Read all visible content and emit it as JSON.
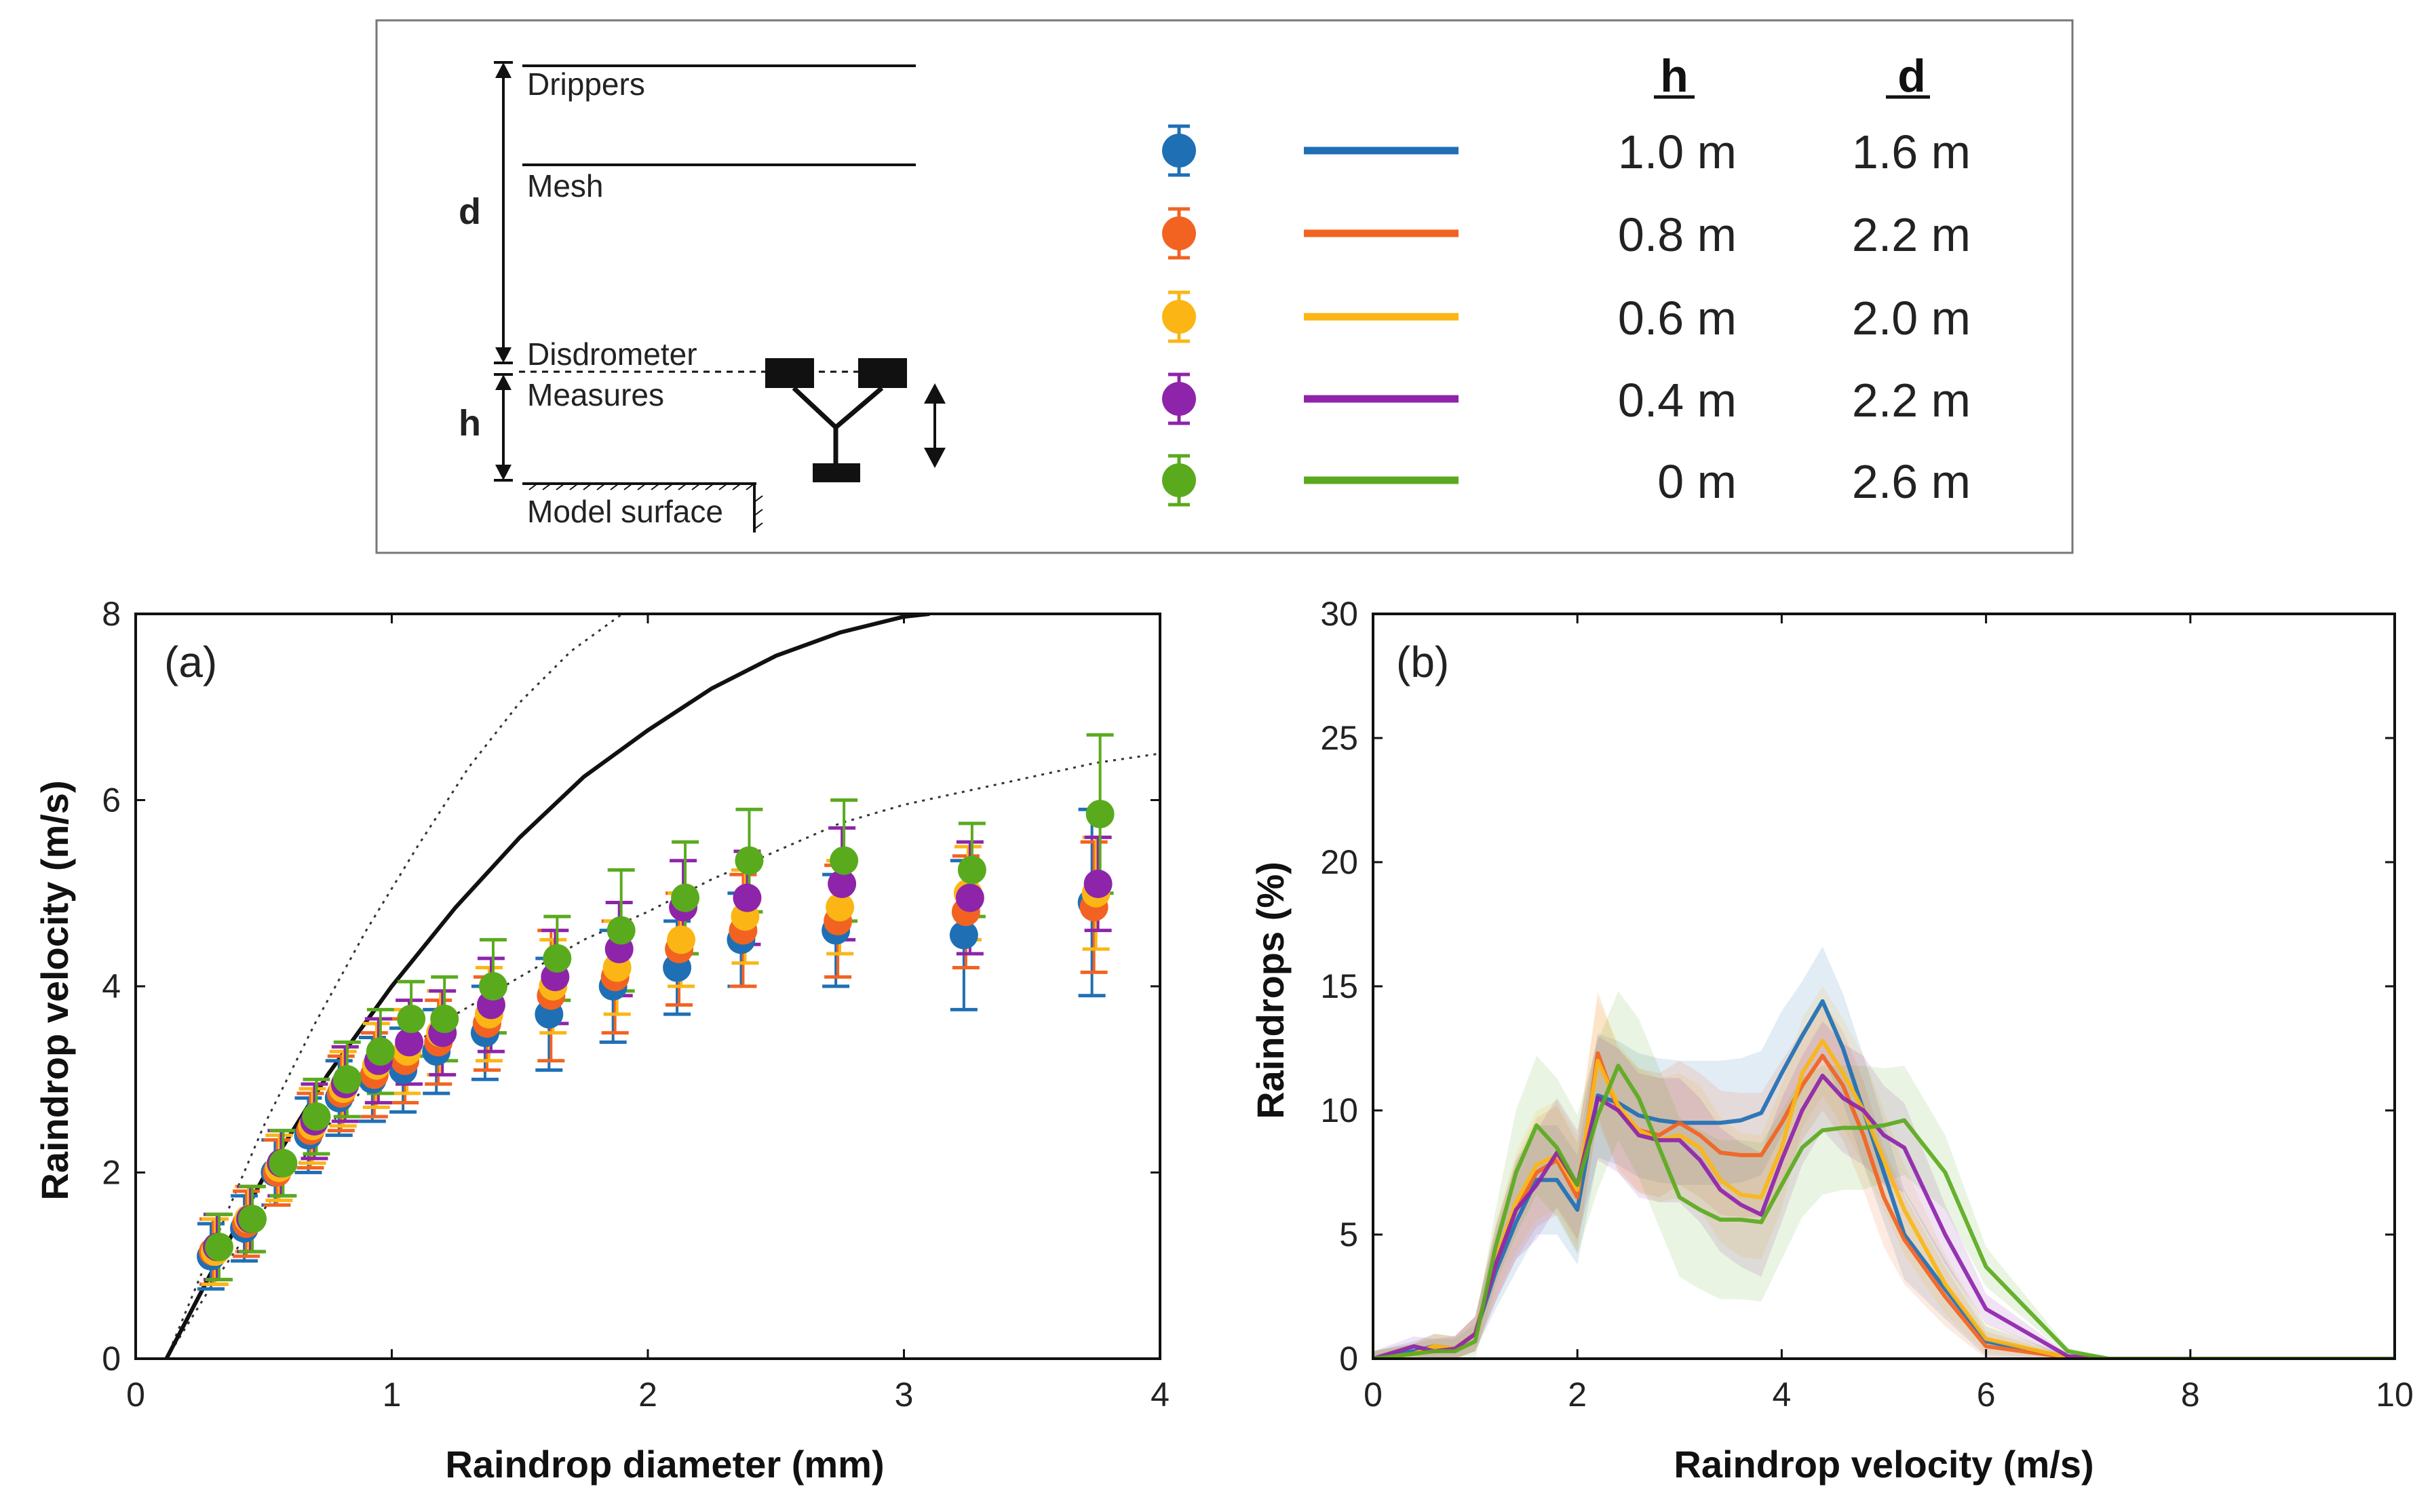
{
  "legend": {
    "diagram_labels": {
      "drippers": "Drippers",
      "mesh": "Mesh",
      "disdrometer": "Disdrometer",
      "measures": "Measures",
      "model_surface": "Model surface",
      "d": "d",
      "h": "h"
    },
    "col_h": "h",
    "col_d": "d",
    "rows": [
      {
        "h": "1.0 m",
        "d": "1.6 m",
        "color": "#1f6fb5"
      },
      {
        "h": "0.8 m",
        "d": "2.2 m",
        "color": "#f26322"
      },
      {
        "h": "0.6 m",
        "d": "2.0 m",
        "color": "#fbb615"
      },
      {
        "h": "0.4 m",
        "d": "2.2 m",
        "color": "#8e24aa"
      },
      {
        "h": "0 m",
        "d": "2.6 m",
        "color": "#5aaa1e"
      }
    ]
  },
  "chart_data": [
    {
      "type": "scatter",
      "panel": "(a)",
      "xlabel": "Raindrop diameter (mm)",
      "ylabel": "Raindrop velocity (m/s)",
      "xlim": [
        0,
        4
      ],
      "ylim": [
        0,
        8
      ],
      "xticks": [
        "0",
        "1",
        "2",
        "3",
        "4"
      ],
      "yticks": [
        "0",
        "2",
        "4",
        "6",
        "8"
      ],
      "x": [
        0.31,
        0.44,
        0.56,
        0.69,
        0.81,
        0.94,
        1.06,
        1.19,
        1.38,
        1.63,
        1.88,
        2.13,
        2.38,
        2.75,
        3.25,
        3.75
      ],
      "series": [
        {
          "name": "1.0 m",
          "values": [
            1.1,
            1.4,
            2.0,
            2.4,
            2.8,
            3.0,
            3.1,
            3.3,
            3.5,
            3.7,
            4.0,
            4.2,
            4.5,
            4.6,
            4.55,
            4.9
          ],
          "err": [
            0.35,
            0.35,
            0.35,
            0.4,
            0.4,
            0.45,
            0.45,
            0.45,
            0.5,
            0.6,
            0.6,
            0.5,
            0.5,
            0.6,
            0.8,
            1.0
          ]
        },
        {
          "name": "0.8 m",
          "values": [
            1.15,
            1.45,
            2.0,
            2.45,
            2.85,
            3.05,
            3.2,
            3.4,
            3.6,
            3.9,
            4.1,
            4.4,
            4.6,
            4.7,
            4.8,
            4.85
          ],
          "err": [
            0.35,
            0.35,
            0.35,
            0.4,
            0.4,
            0.45,
            0.45,
            0.45,
            0.5,
            0.7,
            0.6,
            0.6,
            0.6,
            0.6,
            0.6,
            0.7
          ]
        },
        {
          "name": "0.6 m",
          "values": [
            1.15,
            1.5,
            2.05,
            2.5,
            2.9,
            3.15,
            3.3,
            3.5,
            3.7,
            4.0,
            4.2,
            4.5,
            4.75,
            4.85,
            5.0,
            5.0
          ],
          "err": [
            0.35,
            0.35,
            0.35,
            0.4,
            0.4,
            0.45,
            0.45,
            0.45,
            0.5,
            0.5,
            0.5,
            0.5,
            0.5,
            0.5,
            0.5,
            0.6
          ]
        },
        {
          "name": "0.4 m",
          "values": [
            1.2,
            1.5,
            2.1,
            2.55,
            2.95,
            3.2,
            3.4,
            3.5,
            3.8,
            4.1,
            4.4,
            4.85,
            4.95,
            5.1,
            4.95,
            5.1
          ],
          "err": [
            0.35,
            0.35,
            0.35,
            0.4,
            0.4,
            0.45,
            0.45,
            0.45,
            0.5,
            0.5,
            0.5,
            0.5,
            0.5,
            0.6,
            0.6,
            0.5
          ]
        },
        {
          "name": "0 m",
          "values": [
            1.2,
            1.5,
            2.1,
            2.6,
            3.0,
            3.3,
            3.65,
            3.65,
            4.0,
            4.3,
            4.6,
            4.95,
            5.35,
            5.35,
            5.25,
            5.85
          ],
          "err": [
            0.35,
            0.35,
            0.35,
            0.4,
            0.4,
            0.45,
            0.4,
            0.45,
            0.5,
            0.45,
            0.65,
            0.6,
            0.55,
            0.65,
            0.5,
            0.85
          ]
        }
      ],
      "terminal_curve": {
        "x": [
          0.12,
          0.3,
          0.5,
          0.75,
          1.0,
          1.25,
          1.5,
          1.75,
          2.0,
          2.25,
          2.5,
          2.75,
          3.0,
          3.1
        ],
        "y": [
          0.0,
          0.95,
          1.95,
          3.05,
          4.0,
          4.85,
          5.6,
          6.25,
          6.75,
          7.2,
          7.55,
          7.8,
          7.97,
          8.0
        ]
      },
      "upper_bound_curve": {
        "x": [
          0.12,
          0.3,
          0.5,
          0.7,
          0.9,
          1.1,
          1.3,
          1.5,
          1.7,
          1.9
        ],
        "y": [
          0.0,
          1.2,
          2.5,
          3.6,
          4.6,
          5.5,
          6.35,
          7.05,
          7.6,
          8.0
        ]
      },
      "lower_bound_curve": {
        "x": [
          0.12,
          0.3,
          0.5,
          0.75,
          1.0,
          1.25,
          1.5,
          1.75,
          2.0,
          2.25,
          2.5,
          2.75,
          3.0,
          3.25,
          3.5,
          3.75,
          4.0
        ],
        "y": [
          0.0,
          0.8,
          1.6,
          2.5,
          3.2,
          3.7,
          4.1,
          4.5,
          4.8,
          5.15,
          5.45,
          5.75,
          5.95,
          6.1,
          6.25,
          6.4,
          6.5
        ]
      }
    },
    {
      "type": "line",
      "panel": "(b)",
      "xlabel": "Raindrop velocity (m/s)",
      "ylabel": "Raindrops (%)",
      "xlim": [
        0,
        10
      ],
      "ylim": [
        0,
        30
      ],
      "xticks": [
        "0",
        "2",
        "4",
        "6",
        "8",
        "10"
      ],
      "yticks": [
        "0",
        "5",
        "10",
        "15",
        "20",
        "25",
        "30"
      ],
      "x": [
        0,
        0.4,
        0.6,
        0.8,
        1.0,
        1.2,
        1.4,
        1.6,
        1.8,
        2.0,
        2.2,
        2.4,
        2.6,
        2.8,
        3.0,
        3.2,
        3.4,
        3.6,
        3.8,
        4.0,
        4.2,
        4.4,
        4.6,
        4.8,
        5.0,
        5.2,
        5.6,
        6.0,
        6.8,
        7.2,
        8.0,
        9.0,
        10.0
      ],
      "series": [
        {
          "name": "1.0 m",
          "values": [
            0,
            0.3,
            0.5,
            0.4,
            1.0,
            3.5,
            5.5,
            7.2,
            7.2,
            6.0,
            10.6,
            10.3,
            9.8,
            9.6,
            9.5,
            9.5,
            9.5,
            9.6,
            9.9,
            11.5,
            13.0,
            14.4,
            12.5,
            10.0,
            7.5,
            5.0,
            2.8,
            0.7,
            0.05,
            0,
            0,
            0,
            0
          ],
          "band": [
            0.3,
            0.4,
            0.5,
            0.5,
            0.7,
            1.5,
            2.0,
            2.2,
            2.2,
            2.2,
            2.5,
            2.5,
            2.5,
            2.5,
            2.5,
            2.5,
            2.5,
            2.5,
            2.5,
            2.5,
            2.2,
            2.2,
            2.2,
            2.2,
            2.0,
            1.8,
            1.2,
            0.6,
            0.1,
            0,
            0,
            0,
            0
          ]
        },
        {
          "name": "0.8 m",
          "values": [
            0,
            0.2,
            0.5,
            0.4,
            1.0,
            3.8,
            6.0,
            7.5,
            8.0,
            6.5,
            12.3,
            10.0,
            9.2,
            9.0,
            9.5,
            9.0,
            8.3,
            8.2,
            8.2,
            9.5,
            11.0,
            12.2,
            11.0,
            9.0,
            6.5,
            4.8,
            2.5,
            0.5,
            0.05,
            0,
            0,
            0,
            0
          ],
          "band": [
            0.3,
            0.4,
            0.5,
            0.5,
            0.7,
            1.5,
            2.0,
            2.2,
            2.2,
            2.2,
            2.5,
            2.5,
            2.5,
            2.5,
            2.5,
            2.5,
            2.5,
            2.5,
            2.5,
            2.5,
            2.2,
            2.2,
            2.2,
            2.2,
            2.0,
            1.8,
            1.2,
            0.6,
            0.1,
            0,
            0,
            0,
            0
          ]
        },
        {
          "name": "0.6 m",
          "values": [
            0,
            0.2,
            0.5,
            0.4,
            1.0,
            4.0,
            6.3,
            7.8,
            8.2,
            6.8,
            12.0,
            10.2,
            9.2,
            8.8,
            9.0,
            8.5,
            7.2,
            6.6,
            6.5,
            8.5,
            11.5,
            12.8,
            11.5,
            10.0,
            8.0,
            6.0,
            3.0,
            0.8,
            0.05,
            0,
            0,
            0,
            0
          ],
          "band": [
            0.3,
            0.4,
            0.5,
            0.5,
            0.7,
            1.5,
            2.0,
            2.2,
            2.2,
            2.2,
            2.5,
            2.5,
            2.5,
            2.5,
            2.5,
            2.5,
            2.5,
            2.5,
            2.5,
            2.5,
            2.2,
            2.2,
            2.2,
            2.2,
            2.0,
            1.8,
            1.2,
            0.6,
            0.1,
            0,
            0,
            0,
            0
          ]
        },
        {
          "name": "0.4 m",
          "values": [
            0,
            0.5,
            0.3,
            0.4,
            1.0,
            3.8,
            6.0,
            7.0,
            8.3,
            7.0,
            10.5,
            10.0,
            9.0,
            8.8,
            8.8,
            8.0,
            6.8,
            6.2,
            5.8,
            8.0,
            10.0,
            11.4,
            10.5,
            10.0,
            9.0,
            8.5,
            5.0,
            2.0,
            0.1,
            0,
            0,
            0,
            0
          ],
          "band": [
            0.3,
            0.4,
            0.5,
            0.5,
            0.7,
            1.5,
            2.0,
            2.2,
            2.2,
            2.2,
            2.5,
            2.5,
            2.5,
            2.5,
            2.5,
            2.5,
            2.5,
            2.5,
            2.5,
            2.5,
            2.2,
            2.2,
            2.2,
            2.2,
            2.0,
            1.8,
            1.2,
            0.6,
            0.1,
            0,
            0,
            0,
            0
          ]
        },
        {
          "name": "0 m",
          "values": [
            0,
            0.2,
            0.3,
            0.3,
            0.7,
            4.5,
            7.5,
            9.4,
            8.5,
            7.0,
            9.8,
            11.8,
            10.5,
            8.5,
            6.5,
            6.0,
            5.6,
            5.6,
            5.5,
            7.0,
            8.5,
            9.2,
            9.3,
            9.3,
            9.4,
            9.6,
            7.5,
            3.7,
            0.3,
            0,
            0,
            0,
            0
          ],
          "band": [
            0.3,
            0.4,
            0.5,
            0.5,
            0.7,
            1.5,
            2.5,
            2.8,
            2.8,
            2.8,
            3.0,
            3.0,
            3.2,
            3.2,
            3.2,
            3.2,
            3.2,
            3.2,
            3.2,
            3.0,
            2.8,
            2.6,
            2.5,
            2.5,
            2.3,
            2.2,
            1.5,
            0.8,
            0.15,
            0,
            0,
            0,
            0
          ]
        }
      ]
    }
  ]
}
